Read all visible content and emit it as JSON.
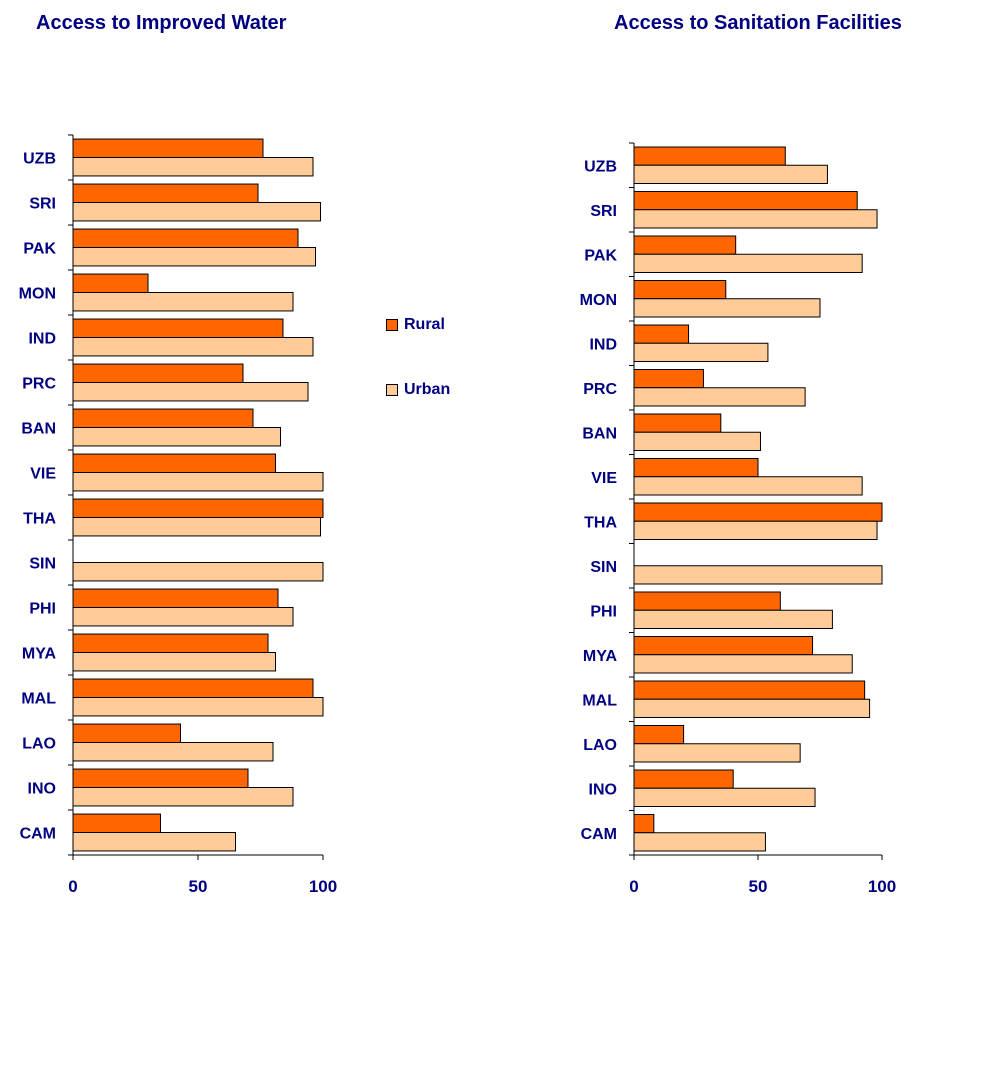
{
  "colors": {
    "rural": "#ff6600",
    "urban": "#ffcc99",
    "text": "#000080",
    "stroke": "#000000"
  },
  "legend": {
    "rural": "Rural",
    "urban": "Urban"
  },
  "chart_data": [
    {
      "type": "bar",
      "orientation": "horizontal",
      "title": "Access to Improved Water",
      "categories": [
        "UZB",
        "SRI",
        "PAK",
        "MON",
        "IND",
        "PRC",
        "BAN",
        "VIE",
        "THA",
        "SIN",
        "PHI",
        "MYA",
        "MAL",
        "LAO",
        "INO",
        "CAM"
      ],
      "series": [
        {
          "name": "Rural",
          "values": [
            76,
            74,
            90,
            30,
            84,
            68,
            72,
            81,
            100,
            null,
            82,
            78,
            96,
            43,
            70,
            35
          ]
        },
        {
          "name": "Urban",
          "values": [
            96,
            99,
            97,
            88,
            96,
            94,
            83,
            100,
            99,
            100,
            88,
            81,
            100,
            80,
            88,
            65
          ]
        }
      ],
      "xlim": [
        0,
        100
      ],
      "xticks": [
        0,
        50,
        100
      ]
    },
    {
      "type": "bar",
      "orientation": "horizontal",
      "title": "Access to Sanitation Facilities",
      "categories": [
        "UZB",
        "SRI",
        "PAK",
        "MON",
        "IND",
        "PRC",
        "BAN",
        "VIE",
        "THA",
        "SIN",
        "PHI",
        "MYA",
        "MAL",
        "LAO",
        "INO",
        "CAM"
      ],
      "series": [
        {
          "name": "Rural",
          "values": [
            61,
            90,
            41,
            37,
            22,
            28,
            35,
            50,
            100,
            null,
            59,
            72,
            93,
            20,
            40,
            8
          ]
        },
        {
          "name": "Urban",
          "values": [
            78,
            98,
            92,
            75,
            54,
            69,
            51,
            92,
            98,
            100,
            80,
            88,
            95,
            67,
            73,
            53
          ]
        }
      ],
      "xlim": [
        0,
        100
      ],
      "xticks": [
        0,
        50,
        100
      ]
    }
  ]
}
